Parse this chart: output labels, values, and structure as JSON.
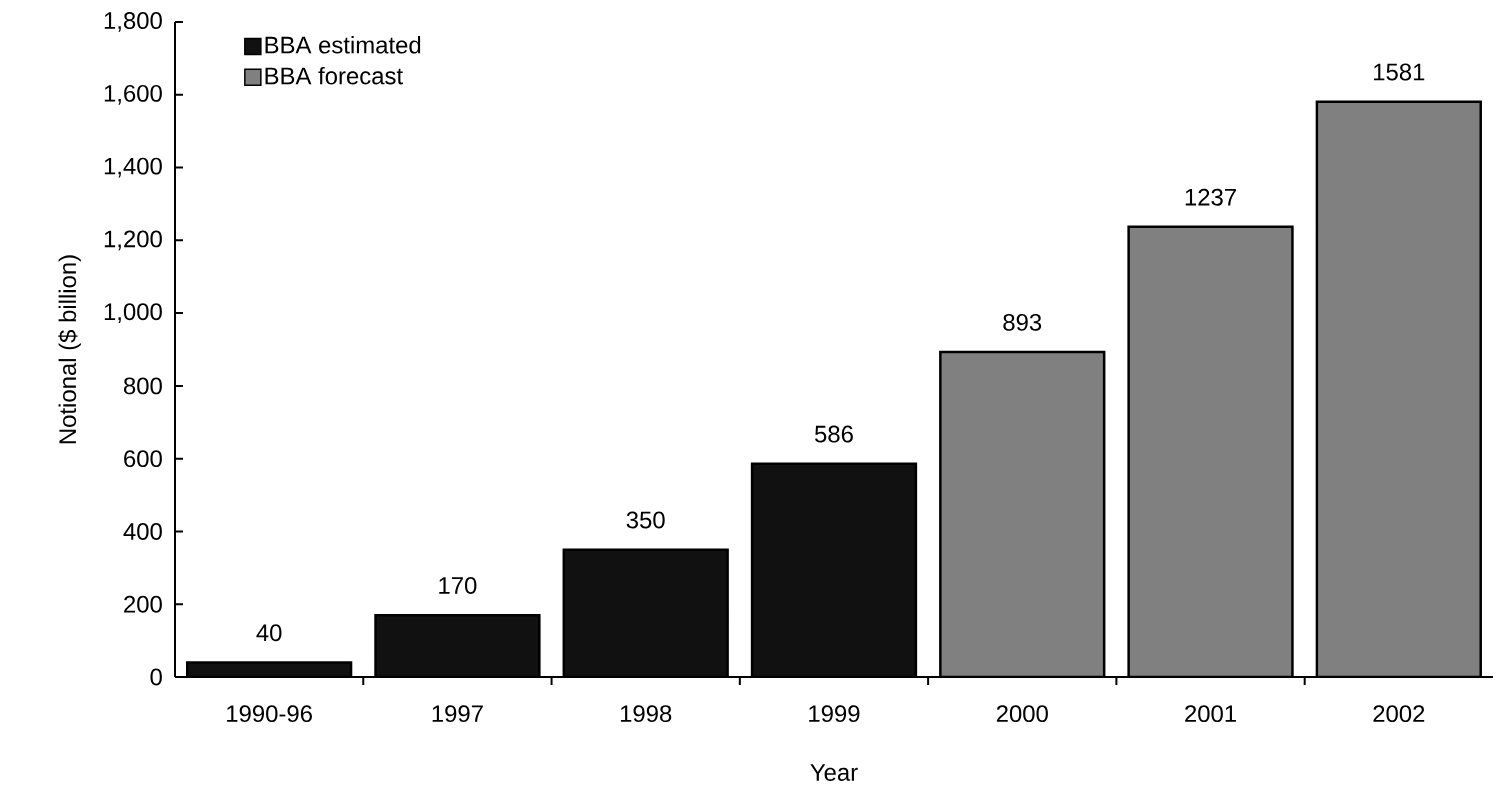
{
  "chart_data": {
    "type": "bar",
    "xlabel": "Year",
    "ylabel": "Notional ($ billion)",
    "categories": [
      "1990-96",
      "1997",
      "1998",
      "1999",
      "2000",
      "2001",
      "2002"
    ],
    "series": [
      {
        "name": "BBA estimated",
        "color": "#111111",
        "values": [
          40,
          170,
          350,
          586,
          null,
          null,
          null
        ]
      },
      {
        "name": "BBA forecast",
        "color": "#808080",
        "values": [
          null,
          null,
          null,
          null,
          893,
          1237,
          1581
        ]
      }
    ],
    "ylim": [
      0,
      1800
    ],
    "yticks": [
      0,
      200,
      400,
      600,
      800,
      {
        "value": 1000,
        "label": "1,000"
      },
      {
        "value": 1200,
        "label": "1,200"
      },
      {
        "value": 1400,
        "label": "1,400"
      },
      {
        "value": 1600,
        "label": "1,600"
      },
      {
        "value": 1800,
        "label": "1,800"
      }
    ],
    "data_labels": true,
    "legend": "top left",
    "grid": false
  }
}
